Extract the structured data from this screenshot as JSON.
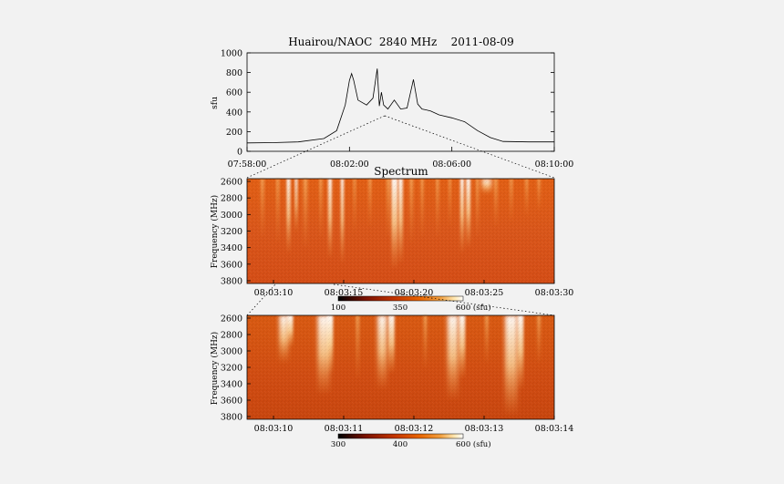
{
  "chart_data": [
    {
      "type": "line",
      "title": "Huairou/NAOC  2840 MHz    2011-08-09",
      "ylabel": "sfu",
      "xlabel": "",
      "x_tick_labels": [
        "07:58:00",
        "08:02:00",
        "08:06:00",
        "08:10:00"
      ],
      "y_tick_labels": [
        "0",
        "200",
        "400",
        "600",
        "800",
        "1000"
      ],
      "ylim": [
        0,
        1000
      ],
      "xlim": [
        "07:58:00",
        "08:10:00"
      ],
      "series": [
        {
          "x": [
            "07:58:00",
            "07:59:00",
            "08:00:00",
            "08:01:00",
            "08:01:30",
            "08:01:50",
            "08:02:00",
            "08:02:05",
            "08:02:10",
            "08:02:20",
            "08:02:40",
            "08:02:55",
            "08:03:05",
            "08:03:10",
            "08:03:15",
            "08:03:20",
            "08:03:30",
            "08:03:45",
            "08:04:00",
            "08:04:15",
            "08:04:30",
            "08:04:40",
            "08:04:50",
            "08:05:00",
            "08:05:10",
            "08:05:30",
            "08:06:00",
            "08:06:30",
            "08:07:00",
            "08:07:30",
            "08:08:00",
            "08:09:00",
            "08:10:00"
          ],
          "values": [
            85,
            88,
            95,
            130,
            210,
            470,
            720,
            790,
            720,
            520,
            470,
            540,
            840,
            460,
            600,
            470,
            430,
            520,
            430,
            440,
            730,
            480,
            430,
            420,
            410,
            370,
            340,
            300,
            210,
            140,
            100,
            95,
            95
          ]
        }
      ]
    },
    {
      "type": "heatmap",
      "title": "Spectrum",
      "ylabel": "Frequency (MHz)",
      "x_tick_labels": [
        "08:03:10",
        "08:03:15",
        "08:03:20",
        "08:03:25",
        "08:03:30"
      ],
      "y_tick_labels": [
        "2600",
        "2800",
        "3000",
        "3200",
        "3400",
        "3600",
        "3800"
      ],
      "colorbar": {
        "labels": [
          "100",
          "350",
          "600 (sfu)"
        ]
      }
    },
    {
      "type": "heatmap",
      "ylabel": "Frequency (MHz)",
      "x_tick_labels": [
        "08:03:10",
        "08:03:11",
        "08:03:12",
        "08:03:13",
        "08:03:14"
      ],
      "y_tick_labels": [
        "2600",
        "2800",
        "3000",
        "3200",
        "3400",
        "3600",
        "3800"
      ],
      "colorbar": {
        "labels": [
          "300",
          "400",
          "600 (sfu)"
        ]
      }
    }
  ],
  "colors": {
    "background": "#f2f2f2",
    "axis": "#000000",
    "colormap": [
      "#000000",
      "#7a1200",
      "#c23400",
      "#e86400",
      "#f2a040",
      "#ffe7b0",
      "#ffffff"
    ]
  }
}
